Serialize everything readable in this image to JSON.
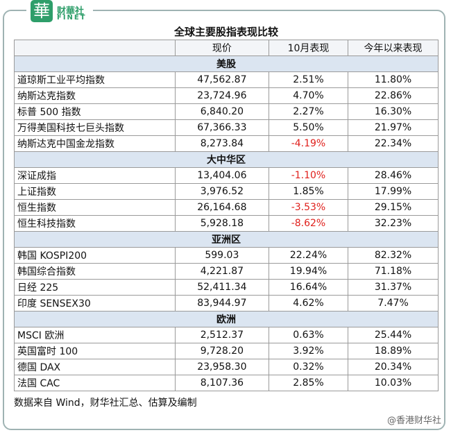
{
  "header": {
    "logo_char": "華",
    "brand": "财華社",
    "brand_en": "FINET"
  },
  "title": "全球主要股指表现比较",
  "table": {
    "columns": [
      "现价",
      "10月表现",
      "今年以来表现"
    ],
    "sections": [
      {
        "name": "美股",
        "rows": [
          [
            "道琼斯工业平均指数",
            "47,562.87",
            "2.51%",
            "11.80%"
          ],
          [
            "纳斯达克指数",
            "23,724.96",
            "4.70%",
            "22.86%"
          ],
          [
            "标普 500 指数",
            "6,840.20",
            "2.27%",
            "16.30%"
          ],
          [
            "万得美国科技七巨头指数",
            "67,366.33",
            "5.50%",
            "21.97%"
          ],
          [
            "纳斯达克中国金龙指数",
            "8,273.84",
            "-4.19%",
            "22.34%"
          ]
        ]
      },
      {
        "name": "大中华区",
        "rows": [
          [
            "深证成指",
            "13,404.06",
            "-1.10%",
            "28.46%"
          ],
          [
            "上证指数",
            "3,976.52",
            "1.85%",
            "17.99%"
          ],
          [
            "恒生指数",
            "26,164.68",
            "-3.53%",
            "29.15%"
          ],
          [
            "恒生科技指数",
            "5,928.18",
            "-8.62%",
            "32.23%"
          ]
        ]
      },
      {
        "name": "亚洲区",
        "rows": [
          [
            "韩国 KOSPI200",
            "599.03",
            "22.24%",
            "82.32%"
          ],
          [
            "韩国综合指数",
            "4,221.87",
            "19.94%",
            "71.18%"
          ],
          [
            "日经 225",
            "52,411.34",
            "16.64%",
            "31.37%"
          ],
          [
            "印度 SENSEX30",
            "83,944.97",
            "4.62%",
            "7.47%"
          ]
        ]
      },
      {
        "name": "欧洲",
        "rows": [
          [
            "MSCI 欧洲",
            "2,512.37",
            "0.63%",
            "25.44%"
          ],
          [
            "英国富时 100",
            "9,728.20",
            "3.92%",
            "18.89%"
          ],
          [
            "德国 DAX",
            "23,958.30",
            "0.32%",
            "20.34%"
          ],
          [
            "法国 CAC",
            "8,107.36",
            "2.85%",
            "10.03%"
          ]
        ]
      }
    ]
  },
  "footer": {
    "source": "数据来自 Wind，财华社汇总、估算及编制",
    "watermark": "@香港财华社"
  }
}
